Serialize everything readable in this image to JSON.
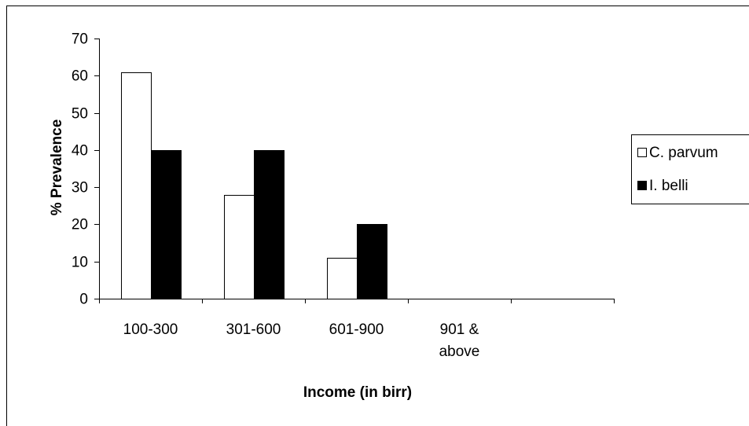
{
  "chart_data": {
    "type": "bar",
    "xlabel": "Income (in birr)",
    "ylabel": "% Prevalence",
    "ylim": [
      0,
      70
    ],
    "yticks": [
      0,
      10,
      20,
      30,
      40,
      50,
      60,
      70
    ],
    "categories": [
      [
        "100-300"
      ],
      [
        "301-600"
      ],
      [
        "601-900"
      ],
      [
        "901 &",
        "above"
      ],
      [
        ""
      ]
    ],
    "series": [
      {
        "name": "C. parvum",
        "color": "#ffffff",
        "values": [
          61,
          28,
          11,
          0,
          null
        ]
      },
      {
        "name": "I. belli",
        "color": "#000000",
        "values": [
          40,
          40,
          20,
          0,
          null
        ]
      }
    ],
    "legend_position": "right",
    "grid": false
  }
}
